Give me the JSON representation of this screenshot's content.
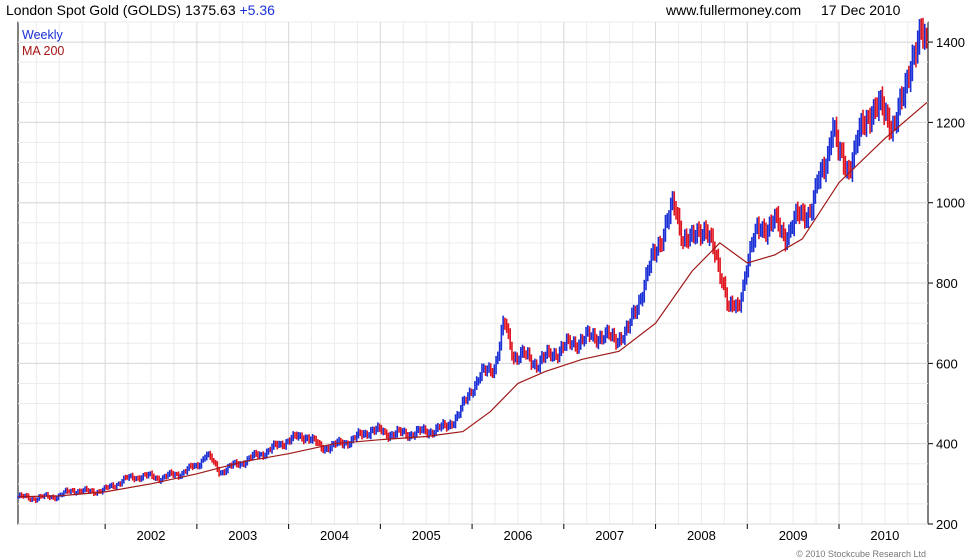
{
  "header": {
    "instrument": "London Spot Gold (GOLDS)",
    "last": "1375.63",
    "change": "+5.36",
    "site": "www.fullermoney.com",
    "date": "17 Dec 2010"
  },
  "legend": {
    "weekly": "Weekly",
    "ma": "MA 200"
  },
  "copyright": "© 2010 Stockcube Research Ltd",
  "colors": {
    "up": "#1a2fd6",
    "down": "#e0141e",
    "ma": "#a01818",
    "grid": "#d8d8d8"
  },
  "chart_data": {
    "type": "line",
    "x_ticks": [
      "2002",
      "2003",
      "2004",
      "2005",
      "2006",
      "2007",
      "2008",
      "2009",
      "2010"
    ],
    "y_ticks": [
      200,
      400,
      600,
      800,
      1000,
      1200,
      1400
    ],
    "ylim": [
      200,
      1450
    ],
    "xlim": [
      2001.05,
      2010.97
    ],
    "grid": true,
    "series": [
      {
        "name": "Weekly",
        "style": "bars",
        "x": [
          2001.05,
          2001.2,
          2001.35,
          2001.5,
          2001.65,
          2001.8,
          2002.0,
          2002.2,
          2002.4,
          2002.6,
          2002.8,
          2003.0,
          2003.1,
          2003.25,
          2003.4,
          2003.6,
          2003.8,
          2004.0,
          2004.2,
          2004.35,
          2004.5,
          2004.7,
          2004.9,
          2005.1,
          2005.3,
          2005.5,
          2005.7,
          2005.85,
          2006.0,
          2006.1,
          2006.25,
          2006.35,
          2006.45,
          2006.55,
          2006.7,
          2006.85,
          2007.0,
          2007.2,
          2007.4,
          2007.55,
          2007.7,
          2007.85,
          2008.0,
          2008.1,
          2008.2,
          2008.3,
          2008.4,
          2008.5,
          2008.55,
          2008.65,
          2008.75,
          2008.8,
          2008.9,
          2009.0,
          2009.1,
          2009.15,
          2009.3,
          2009.4,
          2009.55,
          2009.7,
          2009.85,
          2009.93,
          2010.0,
          2010.1,
          2010.2,
          2010.35,
          2010.45,
          2010.6,
          2010.7,
          2010.8,
          2010.9,
          2010.96
        ],
        "values": [
          268,
          264,
          267,
          270,
          285,
          280,
          285,
          310,
          320,
          315,
          325,
          345,
          375,
          330,
          345,
          365,
          385,
          410,
          420,
          390,
          395,
          410,
          435,
          425,
          425,
          430,
          440,
          470,
          540,
          570,
          595,
          700,
          620,
          620,
          600,
          620,
          640,
          660,
          670,
          660,
          680,
          780,
          880,
          940,
          990,
          920,
          900,
          940,
          940,
          860,
          800,
          740,
          730,
          860,
          920,
          940,
          950,
          920,
          960,
          990,
          1100,
          1200,
          1110,
          1090,
          1150,
          1240,
          1230,
          1200,
          1250,
          1380,
          1410,
          1376
        ]
      },
      {
        "name": "MA 200",
        "style": "line",
        "x": [
          2001.05,
          2001.5,
          2002.0,
          2002.5,
          2003.0,
          2003.5,
          2004.0,
          2004.5,
          2005.0,
          2005.5,
          2005.9,
          2006.2,
          2006.5,
          2006.8,
          2007.2,
          2007.6,
          2008.0,
          2008.4,
          2008.7,
          2009.0,
          2009.3,
          2009.6,
          2010.0,
          2010.5,
          2010.96
        ],
        "values": [
          268,
          270,
          280,
          300,
          325,
          355,
          375,
          400,
          410,
          418,
          430,
          480,
          550,
          580,
          610,
          630,
          700,
          830,
          900,
          850,
          870,
          910,
          1050,
          1160,
          1250
        ]
      }
    ]
  }
}
